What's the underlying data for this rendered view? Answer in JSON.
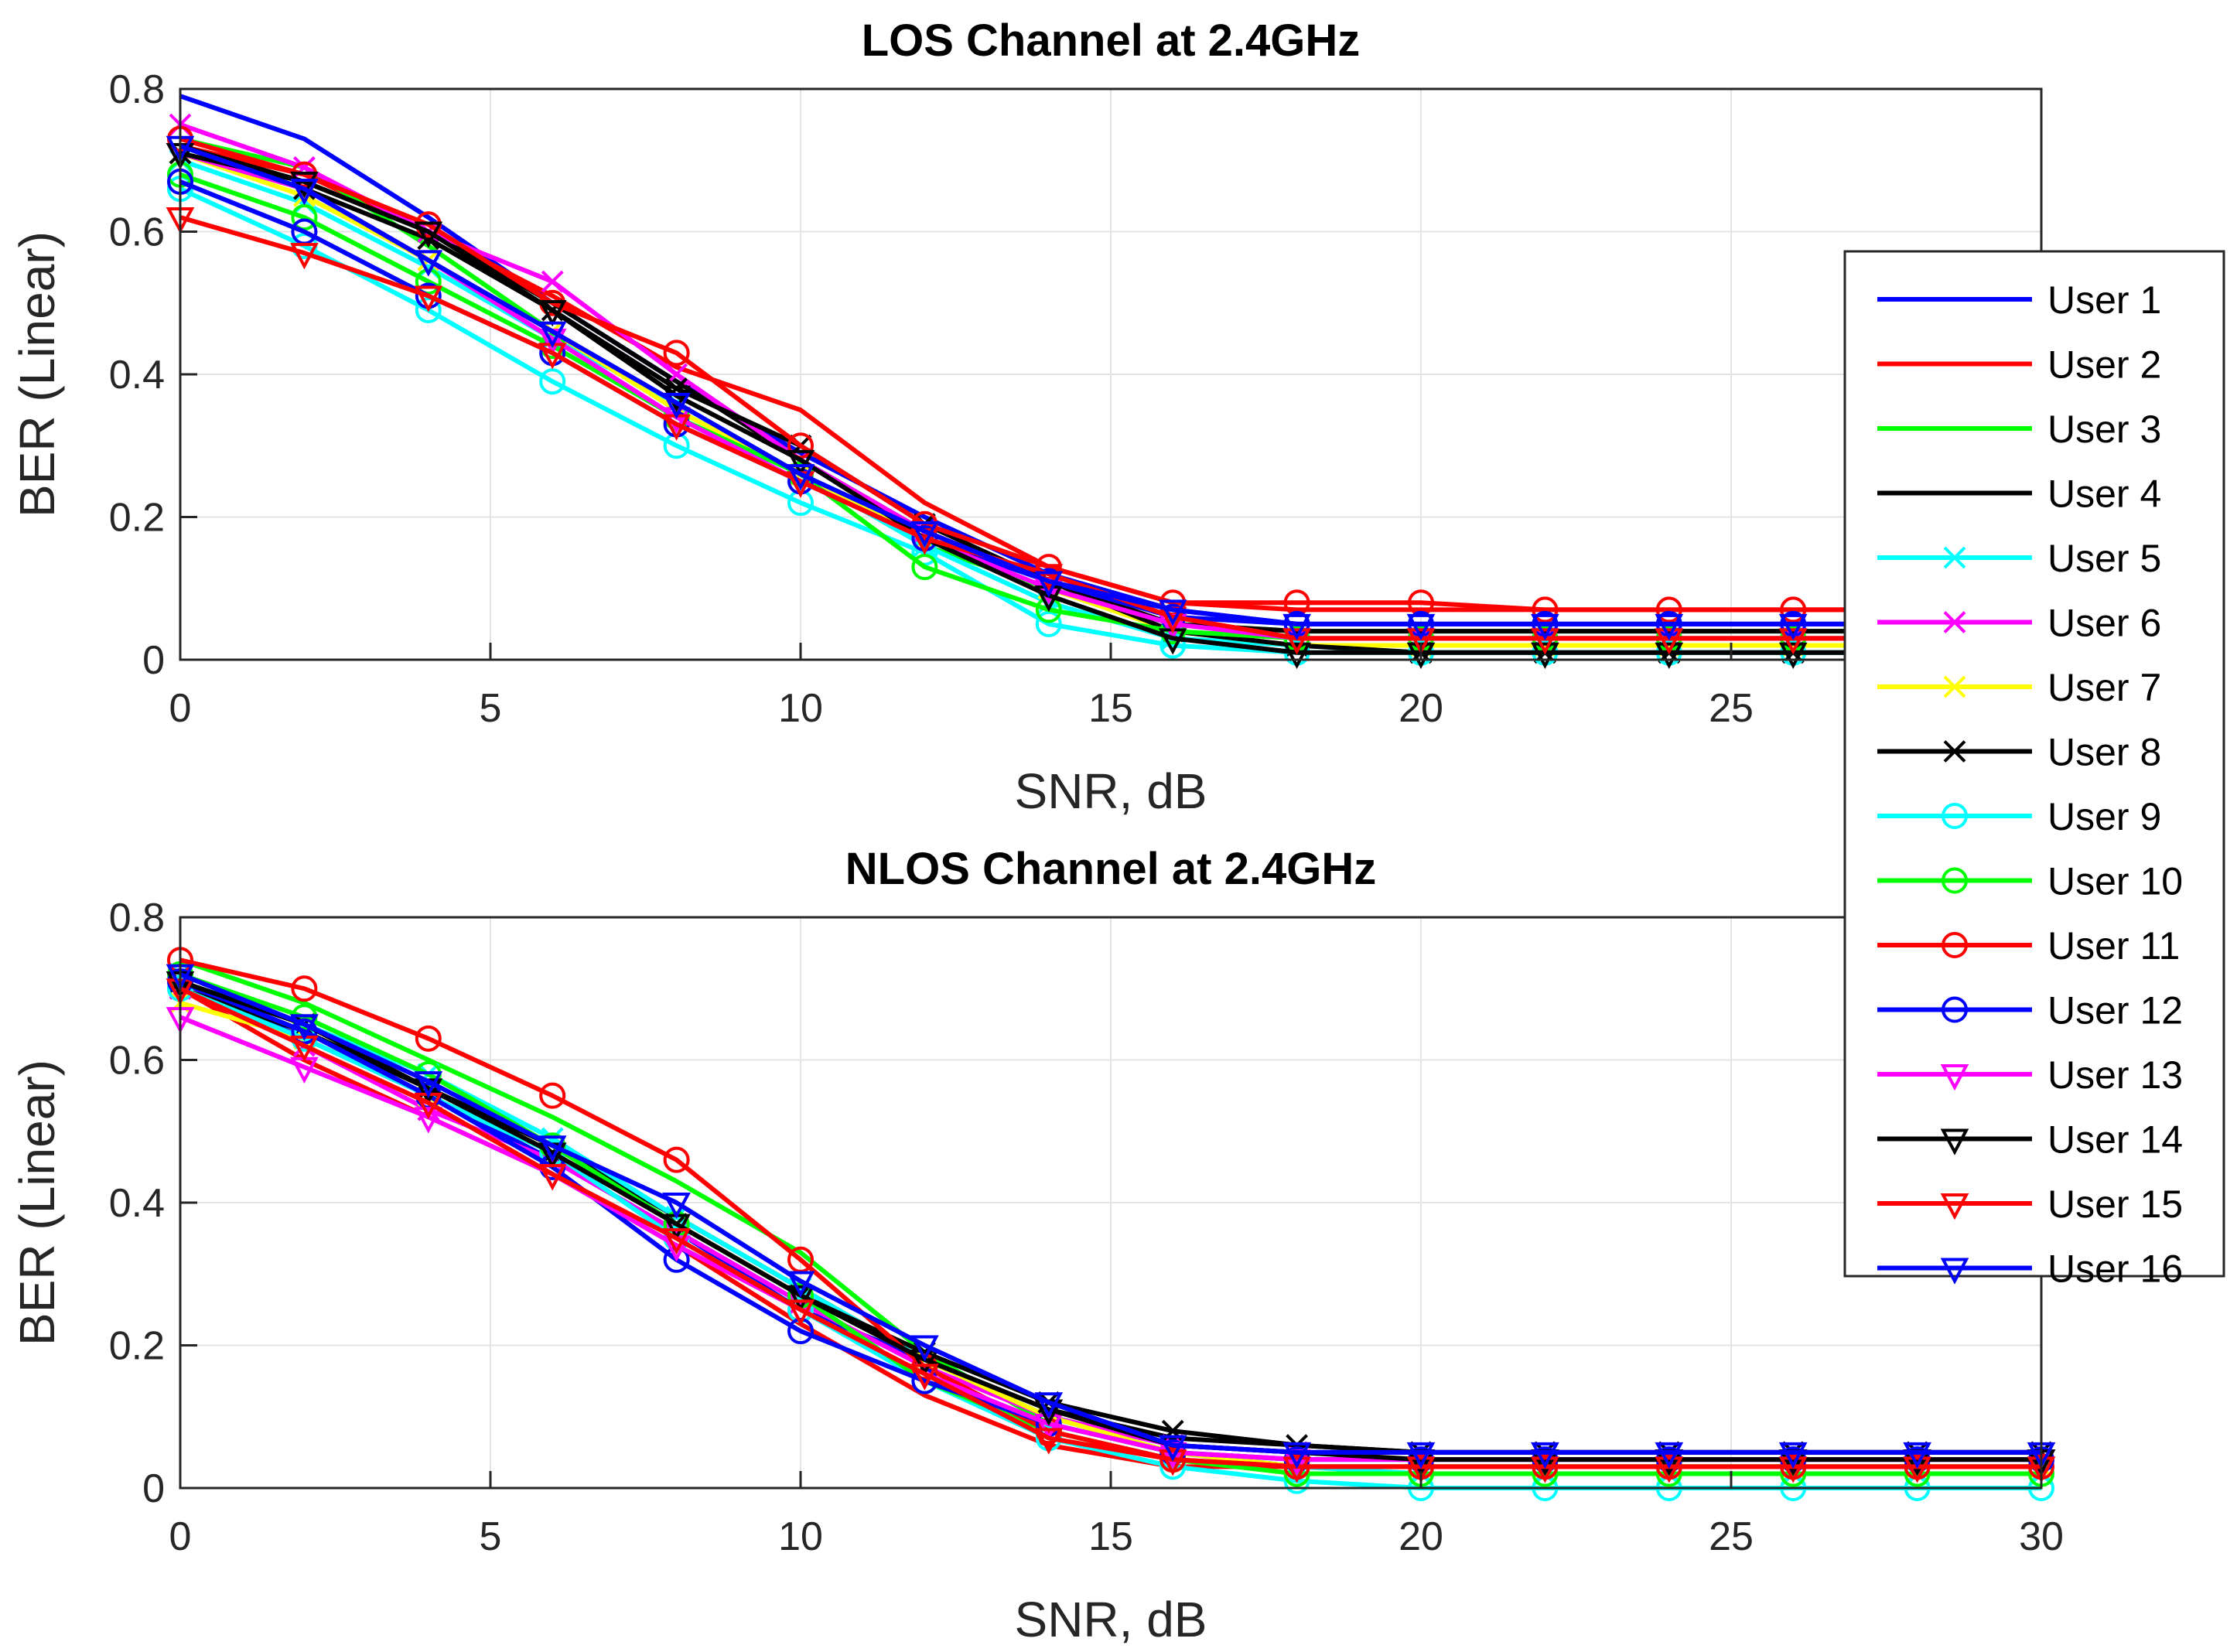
{
  "chart_data": [
    {
      "type": "line",
      "title": "LOS Channel at 2.4GHz",
      "xlabel": "SNR, dB",
      "ylabel": "BER (Linear)",
      "xlim": [
        0,
        30
      ],
      "ylim": [
        0,
        0.8
      ],
      "xticks": [
        "0",
        "5",
        "10",
        "15",
        "20",
        "25",
        "30"
      ],
      "yticks": [
        "0",
        "0.2",
        "0.4",
        "0.6",
        "0.8"
      ],
      "grid": true,
      "x": [
        0,
        2,
        4,
        6,
        8,
        10,
        12,
        14,
        16,
        18,
        20,
        22,
        24,
        26,
        28,
        30
      ],
      "series": [
        {
          "name": "User 1",
          "color": "#0000ff",
          "marker": "none",
          "values": [
            0.79,
            0.73,
            0.62,
            0.5,
            0.39,
            0.29,
            0.2,
            0.12,
            0.07,
            0.05,
            0.05,
            0.05,
            0.05,
            0.05,
            0.05,
            0.05
          ]
        },
        {
          "name": "User 2",
          "color": "#ff0000",
          "marker": "none",
          "values": [
            0.72,
            0.68,
            0.6,
            0.51,
            0.41,
            0.35,
            0.22,
            0.13,
            0.08,
            0.07,
            0.07,
            0.07,
            0.07,
            0.07,
            0.07,
            0.07
          ]
        },
        {
          "name": "User 3",
          "color": "#00ff00",
          "marker": "none",
          "values": [
            0.73,
            0.69,
            0.58,
            0.46,
            0.35,
            0.26,
            0.16,
            0.1,
            0.05,
            0.04,
            0.04,
            0.04,
            0.04,
            0.04,
            0.04,
            0.04
          ]
        },
        {
          "name": "User 4",
          "color": "#000000",
          "marker": "none",
          "values": [
            0.72,
            0.67,
            0.6,
            0.5,
            0.39,
            0.28,
            0.18,
            0.11,
            0.05,
            0.04,
            0.04,
            0.04,
            0.04,
            0.04,
            0.04,
            0.04
          ]
        },
        {
          "name": "User 5",
          "color": "#00ffff",
          "marker": "x",
          "values": [
            0.7,
            0.64,
            0.55,
            0.45,
            0.36,
            0.26,
            0.16,
            0.08,
            0.03,
            0.02,
            0.02,
            0.02,
            0.02,
            0.02,
            0.02,
            0.02
          ]
        },
        {
          "name": "User 6",
          "color": "#ff00ff",
          "marker": "x",
          "values": [
            0.75,
            0.69,
            0.6,
            0.53,
            0.4,
            0.28,
            0.18,
            0.11,
            0.06,
            0.03,
            0.03,
            0.03,
            0.03,
            0.03,
            0.03,
            0.03
          ]
        },
        {
          "name": "User 7",
          "color": "#ffff00",
          "marker": "x",
          "values": [
            0.71,
            0.65,
            0.56,
            0.46,
            0.35,
            0.26,
            0.17,
            0.1,
            0.04,
            0.02,
            0.02,
            0.02,
            0.02,
            0.02,
            0.02,
            0.02
          ]
        },
        {
          "name": "User 8",
          "color": "#000000",
          "marker": "x",
          "values": [
            0.71,
            0.66,
            0.59,
            0.49,
            0.38,
            0.3,
            0.19,
            0.11,
            0.04,
            0.02,
            0.01,
            0.01,
            0.01,
            0.01,
            0.01,
            0.01
          ]
        },
        {
          "name": "User 9",
          "color": "#00ffff",
          "marker": "circle",
          "values": [
            0.66,
            0.58,
            0.49,
            0.39,
            0.3,
            0.22,
            0.15,
            0.05,
            0.02,
            0.01,
            0.01,
            0.01,
            0.01,
            0.01,
            0.01,
            0.01
          ]
        },
        {
          "name": "User 10",
          "color": "#00ff00",
          "marker": "circle",
          "values": [
            0.68,
            0.62,
            0.53,
            0.44,
            0.34,
            0.26,
            0.13,
            0.07,
            0.04,
            0.03,
            0.03,
            0.03,
            0.03,
            0.03,
            0.03,
            0.03
          ]
        },
        {
          "name": "User 11",
          "color": "#ff0000",
          "marker": "circle",
          "values": [
            0.73,
            0.68,
            0.61,
            0.5,
            0.43,
            0.3,
            0.19,
            0.13,
            0.08,
            0.08,
            0.08,
            0.07,
            0.07,
            0.07,
            0.07,
            0.07
          ]
        },
        {
          "name": "User 12",
          "color": "#0000ff",
          "marker": "circle",
          "values": [
            0.67,
            0.6,
            0.51,
            0.43,
            0.33,
            0.25,
            0.17,
            0.11,
            0.06,
            0.05,
            0.05,
            0.05,
            0.05,
            0.05,
            0.05,
            0.05
          ]
        },
        {
          "name": "User 13",
          "color": "#ff00ff",
          "marker": "triangle",
          "values": [
            0.71,
            0.66,
            0.56,
            0.45,
            0.34,
            0.25,
            0.17,
            0.1,
            0.05,
            0.03,
            0.03,
            0.03,
            0.03,
            0.03,
            0.03,
            0.03
          ]
        },
        {
          "name": "User 14",
          "color": "#000000",
          "marker": "triangle",
          "values": [
            0.71,
            0.67,
            0.6,
            0.49,
            0.37,
            0.28,
            0.17,
            0.09,
            0.03,
            0.01,
            0.01,
            0.01,
            0.01,
            0.01,
            0.01,
            0.01
          ]
        },
        {
          "name": "User 15",
          "color": "#ff0000",
          "marker": "triangle",
          "values": [
            0.62,
            0.57,
            0.51,
            0.43,
            0.33,
            0.25,
            0.17,
            0.12,
            0.06,
            0.03,
            0.03,
            0.03,
            0.03,
            0.03,
            0.03,
            0.03
          ]
        },
        {
          "name": "User 16",
          "color": "#0000ff",
          "marker": "triangle",
          "values": [
            0.72,
            0.66,
            0.56,
            0.46,
            0.36,
            0.26,
            0.18,
            0.11,
            0.07,
            0.05,
            0.05,
            0.05,
            0.05,
            0.05,
            0.05,
            0.05
          ]
        }
      ]
    },
    {
      "type": "line",
      "title": "NLOS Channel at 2.4GHz",
      "xlabel": "SNR, dB",
      "ylabel": "BER (Linear)",
      "xlim": [
        0,
        30
      ],
      "ylim": [
        0,
        0.8
      ],
      "xticks": [
        "0",
        "5",
        "10",
        "15",
        "20",
        "25",
        "30"
      ],
      "yticks": [
        "0",
        "0.2",
        "0.4",
        "0.6",
        "0.8"
      ],
      "grid": true,
      "x": [
        0,
        2,
        4,
        6,
        8,
        10,
        12,
        14,
        16,
        18,
        20,
        22,
        24,
        26,
        28,
        30
      ],
      "series": [
        {
          "name": "User 1",
          "color": "#0000ff",
          "marker": "none",
          "values": [
            0.71,
            0.63,
            0.55,
            0.46,
            0.36,
            0.25,
            0.18,
            0.1,
            0.06,
            0.05,
            0.05,
            0.05,
            0.05,
            0.05,
            0.05,
            0.05
          ]
        },
        {
          "name": "User 2",
          "color": "#ff0000",
          "marker": "none",
          "values": [
            0.7,
            0.6,
            0.52,
            0.44,
            0.34,
            0.23,
            0.13,
            0.06,
            0.03,
            0.03,
            0.03,
            0.03,
            0.03,
            0.03,
            0.03,
            0.03
          ]
        },
        {
          "name": "User 3",
          "color": "#00ff00",
          "marker": "none",
          "values": [
            0.74,
            0.68,
            0.6,
            0.52,
            0.43,
            0.33,
            0.19,
            0.09,
            0.05,
            0.03,
            0.03,
            0.03,
            0.03,
            0.03,
            0.03,
            0.03
          ]
        },
        {
          "name": "User 4",
          "color": "#000000",
          "marker": "none",
          "values": [
            0.7,
            0.64,
            0.56,
            0.48,
            0.38,
            0.28,
            0.18,
            0.11,
            0.07,
            0.06,
            0.05,
            0.05,
            0.05,
            0.05,
            0.05,
            0.05
          ]
        },
        {
          "name": "User 5",
          "color": "#00ffff",
          "marker": "x",
          "values": [
            0.72,
            0.65,
            0.58,
            0.49,
            0.38,
            0.28,
            0.18,
            0.1,
            0.05,
            0.03,
            0.02,
            0.02,
            0.02,
            0.02,
            0.02,
            0.02
          ]
        },
        {
          "name": "User 6",
          "color": "#ff00ff",
          "marker": "x",
          "values": [
            0.7,
            0.62,
            0.53,
            0.46,
            0.36,
            0.26,
            0.17,
            0.1,
            0.06,
            0.05,
            0.05,
            0.05,
            0.05,
            0.05,
            0.05,
            0.05
          ]
        },
        {
          "name": "User 7",
          "color": "#ffff00",
          "marker": "x",
          "values": [
            0.68,
            0.63,
            0.55,
            0.47,
            0.37,
            0.27,
            0.18,
            0.1,
            0.05,
            0.03,
            0.03,
            0.03,
            0.03,
            0.03,
            0.03,
            0.03
          ]
        },
        {
          "name": "User 8",
          "color": "#000000",
          "marker": "x",
          "values": [
            0.71,
            0.65,
            0.56,
            0.47,
            0.37,
            0.27,
            0.19,
            0.12,
            0.08,
            0.06,
            0.05,
            0.05,
            0.05,
            0.05,
            0.05,
            0.05
          ]
        },
        {
          "name": "User 9",
          "color": "#00ffff",
          "marker": "circle",
          "values": [
            0.7,
            0.63,
            0.55,
            0.47,
            0.35,
            0.25,
            0.15,
            0.07,
            0.03,
            0.01,
            0.0,
            0.0,
            0.0,
            0.0,
            0.0,
            0.0
          ]
        },
        {
          "name": "User 10",
          "color": "#00ff00",
          "marker": "circle",
          "values": [
            0.72,
            0.66,
            0.58,
            0.48,
            0.37,
            0.27,
            0.15,
            0.08,
            0.04,
            0.02,
            0.02,
            0.02,
            0.02,
            0.02,
            0.02,
            0.02
          ]
        },
        {
          "name": "User 11",
          "color": "#ff0000",
          "marker": "circle",
          "values": [
            0.74,
            0.7,
            0.63,
            0.55,
            0.46,
            0.32,
            0.17,
            0.08,
            0.04,
            0.03,
            0.03,
            0.03,
            0.03,
            0.03,
            0.03,
            0.03
          ]
        },
        {
          "name": "User 12",
          "color": "#0000ff",
          "marker": "circle",
          "values": [
            0.71,
            0.64,
            0.55,
            0.45,
            0.32,
            0.22,
            0.15,
            0.09,
            0.05,
            0.04,
            0.04,
            0.04,
            0.04,
            0.04,
            0.04,
            0.04
          ]
        },
        {
          "name": "User 13",
          "color": "#ff00ff",
          "marker": "triangle",
          "values": [
            0.66,
            0.59,
            0.52,
            0.44,
            0.34,
            0.25,
            0.16,
            0.09,
            0.05,
            0.04,
            0.04,
            0.04,
            0.04,
            0.04,
            0.04,
            0.04
          ]
        },
        {
          "name": "User 14",
          "color": "#000000",
          "marker": "triangle",
          "values": [
            0.71,
            0.65,
            0.56,
            0.47,
            0.37,
            0.27,
            0.18,
            0.11,
            0.06,
            0.05,
            0.04,
            0.04,
            0.04,
            0.04,
            0.04,
            0.04
          ]
        },
        {
          "name": "User 15",
          "color": "#ff0000",
          "marker": "triangle",
          "values": [
            0.7,
            0.62,
            0.54,
            0.44,
            0.35,
            0.25,
            0.16,
            0.07,
            0.04,
            0.03,
            0.03,
            0.03,
            0.03,
            0.03,
            0.03,
            0.03
          ]
        },
        {
          "name": "User 16",
          "color": "#0000ff",
          "marker": "triangle",
          "values": [
            0.72,
            0.65,
            0.57,
            0.48,
            0.4,
            0.29,
            0.2,
            0.12,
            0.06,
            0.05,
            0.05,
            0.05,
            0.05,
            0.05,
            0.05,
            0.05
          ]
        }
      ]
    }
  ]
}
